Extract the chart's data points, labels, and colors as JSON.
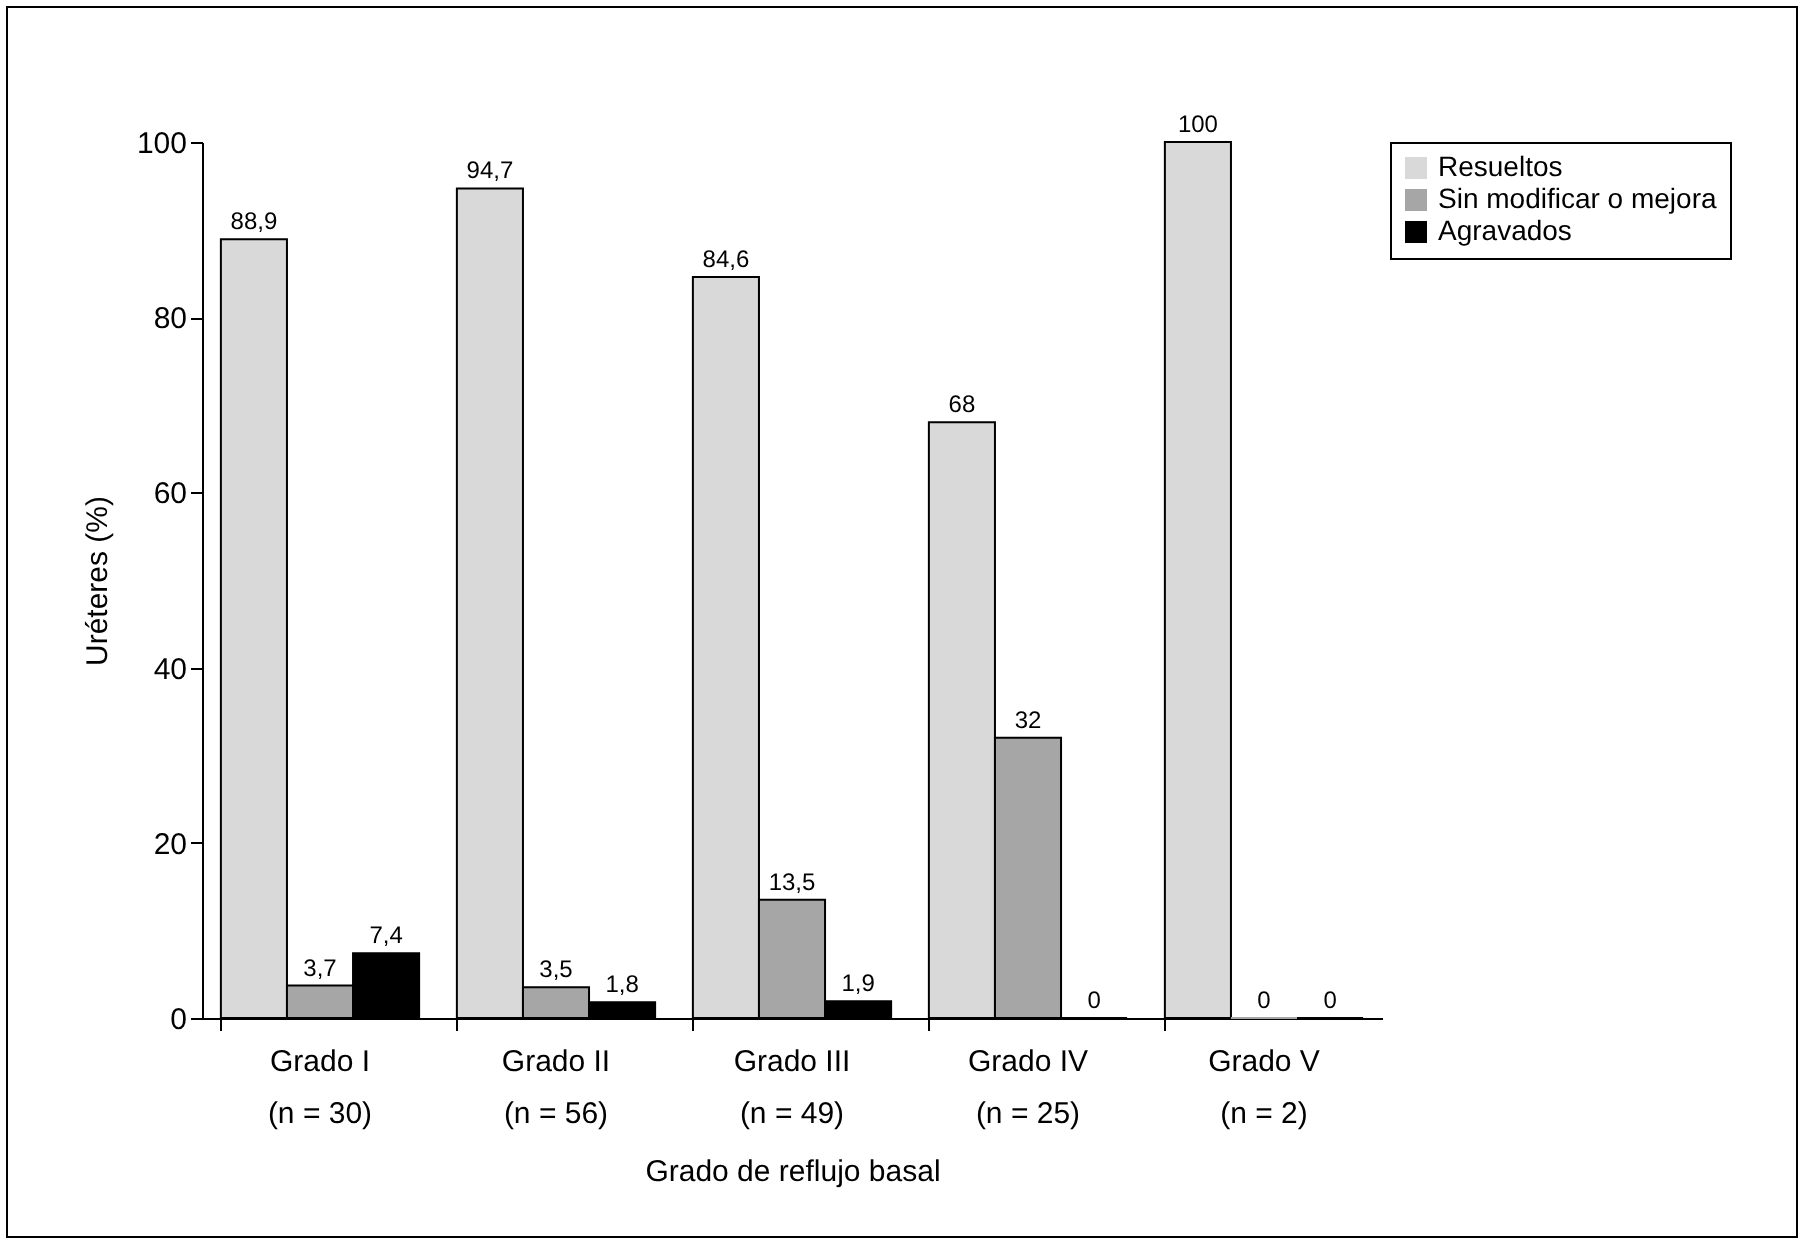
{
  "chart_data": {
    "type": "bar",
    "xlabel": "Grado de reflujo basal",
    "ylabel": "Uréteres (%)",
    "categories": [
      "Grado I\n(n = 30)",
      "Grado II\n(n = 56)",
      "Grado III\n(n = 49)",
      "Grado IV\n(n = 25)",
      "Grado V\n(n = 2)"
    ],
    "series": [
      {
        "name": "Resueltos",
        "color": "#d9d9d9",
        "values": [
          88.9,
          94.7,
          84.6,
          68,
          100
        ],
        "value_labels": [
          "88,9",
          "94,7",
          "84,6",
          "68",
          "100"
        ]
      },
      {
        "name": "Sin modificar o mejora",
        "color": "#a6a6a6",
        "values": [
          3.7,
          3.5,
          13.5,
          32,
          0
        ],
        "value_labels": [
          "3,7",
          "3,5",
          "13,5",
          "32",
          "0"
        ]
      },
      {
        "name": "Agravados",
        "color": "#000000",
        "values": [
          7.4,
          1.8,
          1.9,
          0,
          0
        ],
        "value_labels": [
          "7,4",
          "1,8",
          "1,9",
          "0",
          "0"
        ]
      }
    ],
    "ylim": [
      0,
      100
    ],
    "yticks": [
      0,
      20,
      40,
      60,
      80,
      100
    ],
    "grid": false,
    "legend": "top right"
  }
}
